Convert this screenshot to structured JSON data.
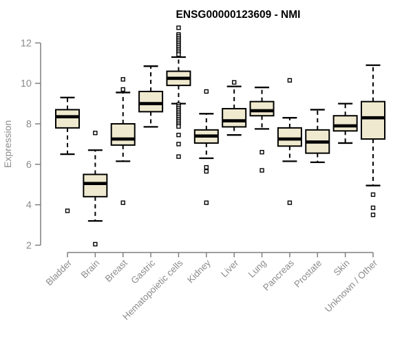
{
  "chart_data": {
    "type": "boxplot",
    "title": "ENSG00000123609 - NMI",
    "ylabel": "Expression",
    "xlabel": "",
    "ylim": [
      2,
      12
    ],
    "yticks": [
      2,
      4,
      6,
      8,
      10,
      12
    ],
    "grid": false,
    "legend": false,
    "categories": [
      "Bladder",
      "Brain",
      "Breast",
      "Gastric",
      "Hematopoietic cells",
      "Kidney",
      "Liver",
      "Lung",
      "Pancreas",
      "Prostate",
      "Skin",
      "Unknown / Other"
    ],
    "boxes": [
      {
        "category": "Bladder",
        "whisker_low": 6.5,
        "q1": 7.8,
        "median": 8.35,
        "q3": 8.7,
        "whisker_high": 9.3,
        "outliers": [
          3.7
        ]
      },
      {
        "category": "Brain",
        "whisker_low": 3.2,
        "q1": 4.4,
        "median": 5.05,
        "q3": 5.5,
        "whisker_high": 6.7,
        "outliers": [
          7.55,
          2.05
        ]
      },
      {
        "category": "Breast",
        "whisker_low": 6.15,
        "q1": 6.95,
        "median": 7.25,
        "q3": 8.0,
        "whisker_high": 9.55,
        "outliers": [
          10.2,
          9.7,
          4.1
        ]
      },
      {
        "category": "Gastric",
        "whisker_low": 7.85,
        "q1": 8.6,
        "median": 9.0,
        "q3": 9.6,
        "whisker_high": 10.85,
        "outliers": []
      },
      {
        "category": "Hematopoietic cells",
        "whisker_low": 9.0,
        "q1": 9.9,
        "median": 10.25,
        "q3": 10.6,
        "whisker_high": 11.3,
        "outliers": [
          12.75,
          12.42,
          12.33,
          12.24,
          12.15,
          12.06,
          11.97,
          11.88,
          11.79,
          11.7,
          11.61,
          11.52,
          11.43,
          8.95,
          8.86,
          8.77,
          8.68,
          8.59,
          8.5,
          8.41,
          8.32,
          8.23,
          8.14,
          8.05,
          7.96,
          7.87,
          7.45,
          7.0,
          6.38
        ]
      },
      {
        "category": "Kidney",
        "whisker_low": 6.3,
        "q1": 7.05,
        "median": 7.4,
        "q3": 7.7,
        "whisker_high": 8.5,
        "outliers": [
          9.6,
          5.85,
          5.65,
          4.1
        ]
      },
      {
        "category": "Liver",
        "whisker_low": 7.45,
        "q1": 7.85,
        "median": 8.15,
        "q3": 8.75,
        "whisker_high": 9.85,
        "outliers": [
          10.05
        ]
      },
      {
        "category": "Lung",
        "whisker_low": 7.75,
        "q1": 8.4,
        "median": 8.65,
        "q3": 9.1,
        "whisker_high": 9.8,
        "outliers": [
          6.6,
          5.7
        ]
      },
      {
        "category": "Pancreas",
        "whisker_low": 6.15,
        "q1": 6.9,
        "median": 7.25,
        "q3": 7.8,
        "whisker_high": 8.3,
        "outliers": [
          10.15,
          4.1
        ]
      },
      {
        "category": "Prostate",
        "whisker_low": 6.1,
        "q1": 6.55,
        "median": 7.1,
        "q3": 7.7,
        "whisker_high": 8.7,
        "outliers": []
      },
      {
        "category": "Skin",
        "whisker_low": 7.05,
        "q1": 7.65,
        "median": 7.9,
        "q3": 8.4,
        "whisker_high": 9.0,
        "outliers": []
      },
      {
        "category": "Unknown / Other",
        "whisker_low": 4.95,
        "q1": 7.25,
        "median": 8.3,
        "q3": 9.1,
        "whisker_high": 10.9,
        "outliers": [
          4.5,
          3.85,
          3.5
        ]
      }
    ],
    "colors": {
      "box_fill": "#EFE9CF",
      "box_stroke": "#000000",
      "median": "#000000",
      "whisker": "#000000",
      "outlier_stroke": "#000000",
      "outlier_fill": "#ffffff",
      "axis_line": "#7f7f7f",
      "axis_text": "#8c8c8c",
      "title": "#000000",
      "background": "#ffffff"
    }
  }
}
